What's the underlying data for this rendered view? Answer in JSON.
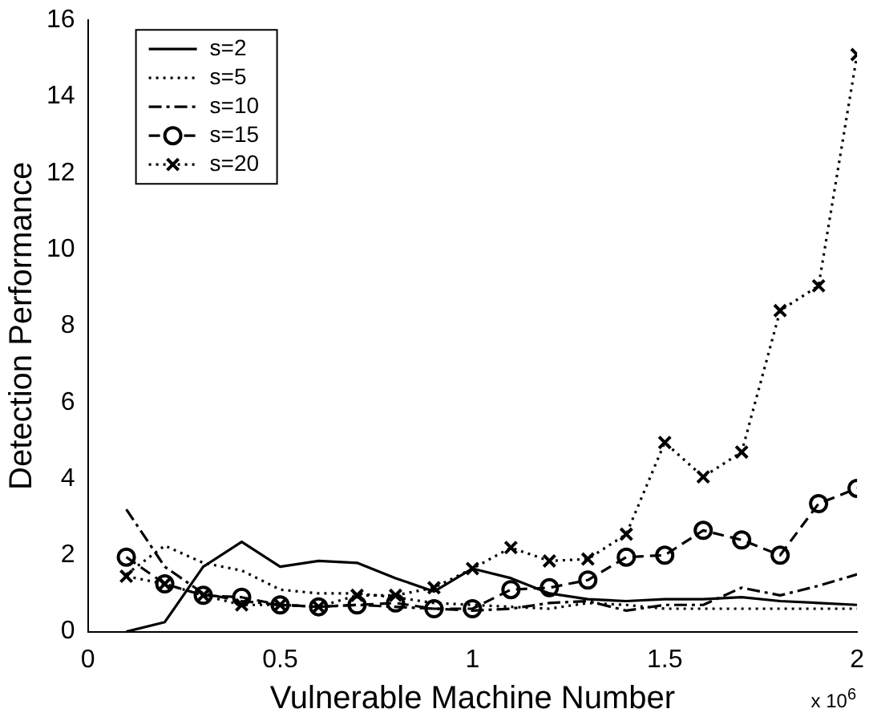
{
  "chart_data": {
    "type": "line",
    "xlabel": "Vulnerable Machine Number",
    "ylabel": "Detection Performance",
    "x": [
      0.1,
      0.2,
      0.3,
      0.4,
      0.5,
      0.6,
      0.7,
      0.8,
      0.9,
      1.0,
      1.1,
      1.2,
      1.3,
      1.4,
      1.5,
      1.6,
      1.7,
      1.8,
      1.9,
      2.0
    ],
    "series": [
      {
        "name": "s=2",
        "color": "#000000",
        "line_style": "solid",
        "marker": "none",
        "values": [
          0,
          0.25,
          1.7,
          2.35,
          1.7,
          1.85,
          1.8,
          1.4,
          1.05,
          1.65,
          1.4,
          1.0,
          0.85,
          0.8,
          0.85,
          0.85,
          0.9,
          0.8,
          0.75,
          0.7
        ]
      },
      {
        "name": "s=5",
        "color": "#000000",
        "line_style": "dotted",
        "marker": "none",
        "values": [
          1.5,
          2.25,
          1.8,
          1.6,
          1.1,
          1.0,
          1.0,
          0.9,
          0.75,
          0.7,
          0.65,
          0.6,
          0.75,
          0.7,
          0.6,
          0.6,
          0.6,
          0.6,
          0.6,
          0.6
        ]
      },
      {
        "name": "s=10",
        "color": "#000000",
        "line_style": "dashdot",
        "marker": "none",
        "values": [
          3.2,
          1.7,
          1.0,
          0.8,
          0.7,
          0.65,
          0.7,
          0.65,
          0.6,
          0.55,
          0.6,
          0.75,
          0.8,
          0.55,
          0.7,
          0.7,
          1.15,
          0.95,
          1.2,
          1.5
        ]
      },
      {
        "name": "s=15",
        "color": "#000000",
        "line_style": "dashed",
        "marker": "circle",
        "values": [
          1.95,
          1.25,
          0.95,
          0.9,
          0.7,
          0.65,
          0.7,
          0.75,
          0.6,
          0.6,
          1.1,
          1.15,
          1.35,
          1.95,
          2.0,
          2.65,
          2.4,
          2.0,
          3.35,
          3.75
        ]
      },
      {
        "name": "s=20",
        "color": "#000000",
        "line_style": "dotted",
        "marker": "cross",
        "values": [
          1.45,
          1.25,
          0.95,
          0.7,
          0.7,
          0.65,
          0.95,
          0.95,
          1.15,
          1.65,
          2.2,
          1.85,
          1.9,
          2.55,
          4.95,
          4.05,
          4.7,
          8.4,
          9.05,
          15.1
        ]
      }
    ],
    "xlim": [
      0,
      2
    ],
    "xticks": [
      0,
      0.5,
      1,
      1.5,
      2
    ],
    "ylim": [
      0,
      16
    ],
    "yticks": [
      0,
      2,
      4,
      6,
      8,
      10,
      12,
      14,
      16
    ],
    "grid": false,
    "legend": "top left",
    "annotations": [
      "x 10$^{6}$"
    ]
  }
}
